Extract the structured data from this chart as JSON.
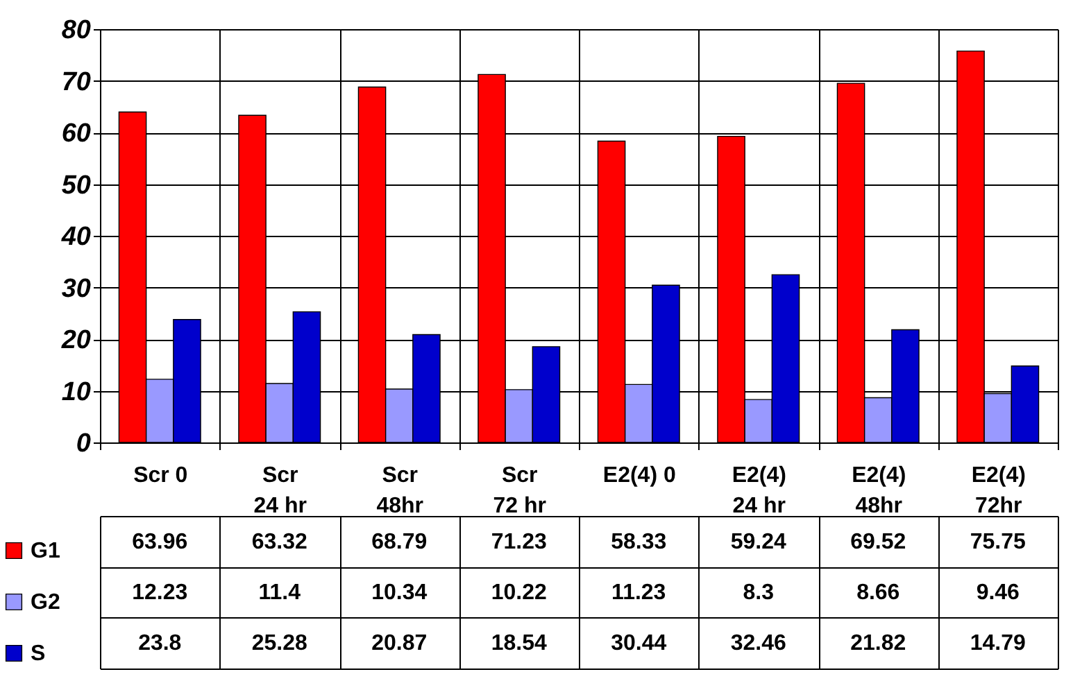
{
  "chart_data": {
    "type": "bar",
    "categories": [
      "Scr 0",
      "Scr 24 hr",
      "Scr 48hr",
      "Scr 72 hr",
      "E2(4) 0",
      "E2(4) 24 hr",
      "E2(4) 48hr",
      "E2(4) 72hr"
    ],
    "series": [
      {
        "name": "G1",
        "color": "#ff0000",
        "values": [
          63.96,
          63.32,
          68.79,
          71.23,
          58.33,
          59.24,
          69.52,
          75.75
        ]
      },
      {
        "name": "G2",
        "color": "#9999ff",
        "values": [
          12.23,
          11.4,
          10.34,
          10.22,
          11.23,
          8.3,
          8.66,
          9.46
        ]
      },
      {
        "name": "S",
        "color": "#0000cc",
        "values": [
          23.8,
          25.28,
          20.87,
          18.54,
          30.44,
          32.46,
          21.82,
          14.79
        ]
      }
    ],
    "ylim": [
      0,
      80
    ],
    "yticks": [
      0,
      10,
      20,
      30,
      40,
      50,
      60,
      70,
      80
    ],
    "grid": "y",
    "legend": "bottom",
    "data_labels": true
  }
}
